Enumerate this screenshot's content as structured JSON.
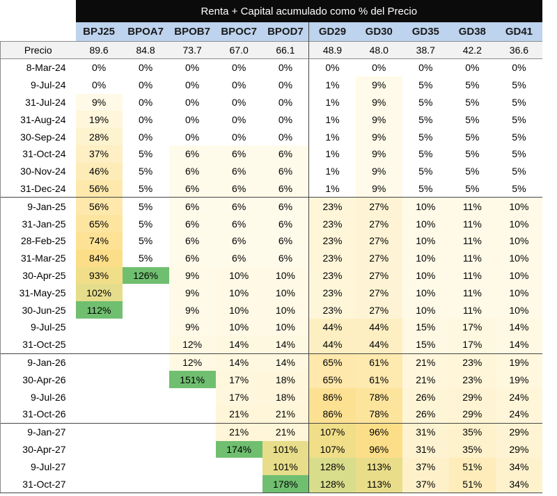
{
  "title": "Renta + Capital acumulado como % del Precio",
  "columns": [
    "BPJ25",
    "BPOA7",
    "BPOB7",
    "BPOC7",
    "BPOD7",
    "GD29",
    "GD30",
    "GD35",
    "GD38",
    "GD41"
  ],
  "price_label": "Precio",
  "prices": [
    "89.6",
    "84.8",
    "73.7",
    "67.0",
    "66.1",
    "48.9",
    "48.0",
    "38.7",
    "42.2",
    "36.6"
  ],
  "group_starts": [
    8,
    17,
    21
  ],
  "rows": [
    {
      "date": "8-Mar-24",
      "values": [
        "0%",
        "0%",
        "0%",
        "0%",
        "0%",
        "0%",
        "0%",
        "0%",
        "0%",
        "0%"
      ]
    },
    {
      "date": "9-Jul-24",
      "values": [
        "0%",
        "0%",
        "0%",
        "0%",
        "0%",
        "1%",
        "9%",
        "5%",
        "5%",
        "5%"
      ]
    },
    {
      "date": "31-Jul-24",
      "values": [
        "9%",
        "0%",
        "0%",
        "0%",
        "0%",
        "1%",
        "9%",
        "5%",
        "5%",
        "5%"
      ]
    },
    {
      "date": "31-Aug-24",
      "values": [
        "19%",
        "0%",
        "0%",
        "0%",
        "0%",
        "1%",
        "9%",
        "5%",
        "5%",
        "5%"
      ]
    },
    {
      "date": "30-Sep-24",
      "values": [
        "28%",
        "0%",
        "0%",
        "0%",
        "0%",
        "1%",
        "9%",
        "5%",
        "5%",
        "5%"
      ]
    },
    {
      "date": "31-Oct-24",
      "values": [
        "37%",
        "5%",
        "6%",
        "6%",
        "6%",
        "1%",
        "9%",
        "5%",
        "5%",
        "5%"
      ]
    },
    {
      "date": "30-Nov-24",
      "values": [
        "46%",
        "5%",
        "6%",
        "6%",
        "6%",
        "1%",
        "9%",
        "5%",
        "5%",
        "5%"
      ]
    },
    {
      "date": "31-Dec-24",
      "values": [
        "56%",
        "5%",
        "6%",
        "6%",
        "6%",
        "1%",
        "9%",
        "5%",
        "5%",
        "5%"
      ]
    },
    {
      "date": "9-Jan-25",
      "values": [
        "56%",
        "5%",
        "6%",
        "6%",
        "6%",
        "23%",
        "27%",
        "10%",
        "11%",
        "10%"
      ]
    },
    {
      "date": "31-Jan-25",
      "values": [
        "65%",
        "5%",
        "6%",
        "6%",
        "6%",
        "23%",
        "27%",
        "10%",
        "11%",
        "10%"
      ]
    },
    {
      "date": "28-Feb-25",
      "values": [
        "74%",
        "5%",
        "6%",
        "6%",
        "6%",
        "23%",
        "27%",
        "10%",
        "11%",
        "10%"
      ]
    },
    {
      "date": "31-Mar-25",
      "values": [
        "84%",
        "5%",
        "6%",
        "6%",
        "6%",
        "23%",
        "27%",
        "10%",
        "11%",
        "10%"
      ]
    },
    {
      "date": "30-Apr-25",
      "values": [
        "93%",
        "126%",
        "9%",
        "10%",
        "10%",
        "23%",
        "27%",
        "10%",
        "11%",
        "10%"
      ]
    },
    {
      "date": "31-May-25",
      "values": [
        "102%",
        "",
        "9%",
        "10%",
        "10%",
        "23%",
        "27%",
        "10%",
        "11%",
        "10%"
      ]
    },
    {
      "date": "30-Jun-25",
      "values": [
        "112%",
        "",
        "9%",
        "10%",
        "10%",
        "23%",
        "27%",
        "10%",
        "11%",
        "10%"
      ]
    },
    {
      "date": "9-Jul-25",
      "values": [
        "",
        "",
        "9%",
        "10%",
        "10%",
        "44%",
        "44%",
        "15%",
        "17%",
        "14%"
      ]
    },
    {
      "date": "31-Oct-25",
      "values": [
        "",
        "",
        "12%",
        "14%",
        "14%",
        "44%",
        "44%",
        "15%",
        "17%",
        "14%"
      ]
    },
    {
      "date": "9-Jan-26",
      "values": [
        "",
        "",
        "12%",
        "14%",
        "14%",
        "65%",
        "61%",
        "21%",
        "23%",
        "19%"
      ]
    },
    {
      "date": "30-Apr-26",
      "values": [
        "",
        "",
        "151%",
        "17%",
        "18%",
        "65%",
        "61%",
        "21%",
        "23%",
        "19%"
      ]
    },
    {
      "date": "9-Jul-26",
      "values": [
        "",
        "",
        "",
        "17%",
        "18%",
        "86%",
        "78%",
        "26%",
        "29%",
        "24%"
      ]
    },
    {
      "date": "31-Oct-26",
      "values": [
        "",
        "",
        "",
        "21%",
        "21%",
        "86%",
        "78%",
        "26%",
        "29%",
        "24%"
      ]
    },
    {
      "date": "9-Jan-27",
      "values": [
        "",
        "",
        "",
        "21%",
        "21%",
        "107%",
        "96%",
        "31%",
        "35%",
        "29%"
      ]
    },
    {
      "date": "30-Apr-27",
      "values": [
        "",
        "",
        "",
        "174%",
        "101%",
        "107%",
        "96%",
        "31%",
        "35%",
        "29%"
      ]
    },
    {
      "date": "9-Jul-27",
      "values": [
        "",
        "",
        "",
        "",
        "101%",
        "128%",
        "113%",
        "37%",
        "51%",
        "34%"
      ]
    },
    {
      "date": "31-Oct-27",
      "values": [
        "",
        "",
        "",
        "",
        "178%",
        "128%",
        "113%",
        "37%",
        "51%",
        "34%"
      ]
    }
  ],
  "colors": {
    "header_bg": "#0b0b0b",
    "header_text": "#ffffff",
    "column_header_bg": "#bdd3ee",
    "price_row_bg": "#f2f2f2",
    "scale_low": "#fffdf3",
    "scale_mid": "#fdde88",
    "scale_high": "#d8dd8c",
    "max_cell": "#70bf70"
  }
}
